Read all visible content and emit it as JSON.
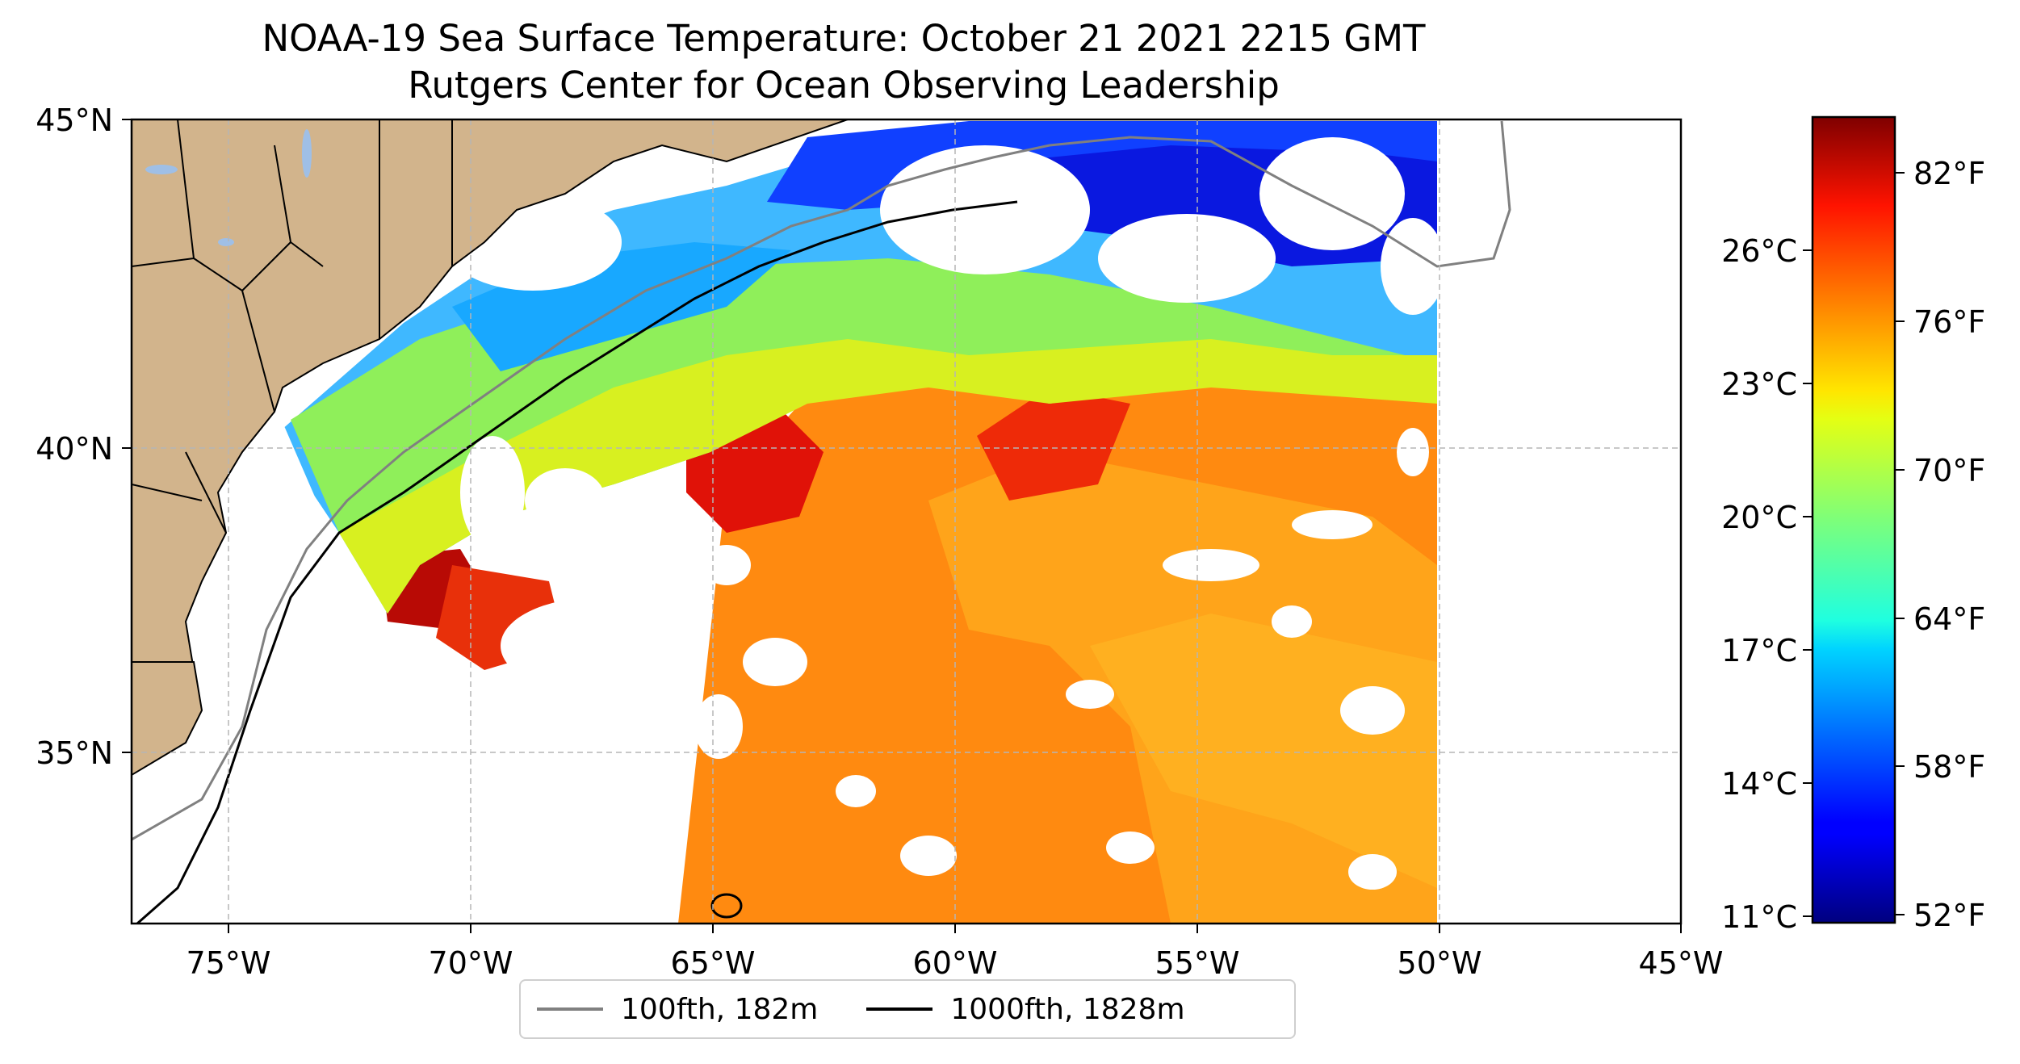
{
  "title": "NOAA-19 Sea Surface Temperature: October 21 2021 2215 GMT",
  "subtitle": "Rutgers Center for Ocean Observing Leadership",
  "map": {
    "lon_ticks": [
      "75°W",
      "70°W",
      "65°W",
      "60°W",
      "55°W",
      "50°W",
      "45°W"
    ],
    "lat_ticks": [
      "45°N",
      "40°N",
      "35°N"
    ],
    "extent": {
      "lon_min": -77,
      "lon_max": -45,
      "lat_min": 32.2,
      "lat_max": 45
    },
    "gridlines": true,
    "land_color": "#d2b48c",
    "lake_color": "#9fbfe6"
  },
  "colorbar": {
    "cmap": "jet",
    "celsius_ticks": [
      "26°C",
      "23°C",
      "20°C",
      "17°C",
      "14°C",
      "11°C"
    ],
    "fahrenheit_ticks": [
      "82°F",
      "76°F",
      "70°F",
      "64°F",
      "58°F",
      "52°F"
    ],
    "range_f": [
      51,
      85
    ]
  },
  "legend": {
    "items": [
      {
        "label": "100fth, 182m",
        "color": "#808080"
      },
      {
        "label": "1000fth, 1828m",
        "color": "#000000"
      }
    ]
  }
}
